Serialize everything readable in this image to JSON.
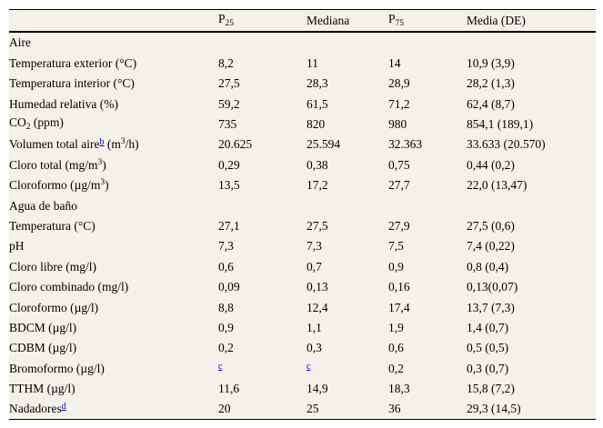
{
  "theme": {
    "table_background": "#f4f1e9",
    "page_background": "#ffffff",
    "text_color": "#000000",
    "rule_color": "#000000",
    "footnote_link_color": "#0000cc"
  },
  "table": {
    "header": {
      "columns": [
        {
          "id": "p25",
          "parts": [
            {
              "t": "P"
            },
            {
              "t": "25",
              "s": "sub"
            }
          ]
        },
        {
          "id": "mediana",
          "parts": [
            {
              "t": "Mediana"
            }
          ]
        },
        {
          "id": "p75",
          "parts": [
            {
              "t": "P"
            },
            {
              "t": "75",
              "s": "sub"
            }
          ]
        },
        {
          "id": "media-de",
          "parts": [
            {
              "t": "Media (DE)"
            }
          ]
        }
      ]
    },
    "rows": [
      {
        "type": "group",
        "label": [
          {
            "t": "Aire"
          }
        ]
      },
      {
        "type": "data",
        "label": [
          {
            "t": "Temperatura exterior (°C)"
          }
        ],
        "cells": [
          [
            {
              "t": "8,2"
            }
          ],
          [
            {
              "t": "11"
            }
          ],
          [
            {
              "t": "14"
            }
          ],
          [
            {
              "t": "10,9 (3,9)"
            }
          ]
        ]
      },
      {
        "type": "data",
        "label": [
          {
            "t": "Temperatura interior (°C)"
          }
        ],
        "cells": [
          [
            {
              "t": "27,5"
            }
          ],
          [
            {
              "t": "28,3"
            }
          ],
          [
            {
              "t": "28,9"
            }
          ],
          [
            {
              "t": "28,2 (1,3)"
            }
          ]
        ]
      },
      {
        "type": "data",
        "label": [
          {
            "t": "Humedad relativa (%)"
          }
        ],
        "cells": [
          [
            {
              "t": "59,2"
            }
          ],
          [
            {
              "t": "61,5"
            }
          ],
          [
            {
              "t": "71,2"
            }
          ],
          [
            {
              "t": "62,4 (8,7)"
            }
          ]
        ]
      },
      {
        "type": "data",
        "label": [
          {
            "t": "CO"
          },
          {
            "t": "2",
            "s": "sub"
          },
          {
            "t": " (ppm)"
          }
        ],
        "cells": [
          [
            {
              "t": "735"
            }
          ],
          [
            {
              "t": "820"
            }
          ],
          [
            {
              "t": "980"
            }
          ],
          [
            {
              "t": "854,1 (189,1)"
            }
          ]
        ]
      },
      {
        "type": "data",
        "label": [
          {
            "t": "Volumen total aire"
          },
          {
            "t": "b",
            "s": "footnote"
          },
          {
            "t": " (m"
          },
          {
            "t": "3",
            "s": "sup"
          },
          {
            "t": "/h)"
          }
        ],
        "cells": [
          [
            {
              "t": "20.625"
            }
          ],
          [
            {
              "t": "25.594"
            }
          ],
          [
            {
              "t": "32.363"
            }
          ],
          [
            {
              "t": "33.633 (20.570)"
            }
          ]
        ]
      },
      {
        "type": "data",
        "label": [
          {
            "t": "Cloro total (mg/m"
          },
          {
            "t": "3",
            "s": "sup"
          },
          {
            "t": ")"
          }
        ],
        "cells": [
          [
            {
              "t": "0,29"
            }
          ],
          [
            {
              "t": "0,38"
            }
          ],
          [
            {
              "t": "0,75"
            }
          ],
          [
            {
              "t": "0,44 (0,2)"
            }
          ]
        ]
      },
      {
        "type": "data",
        "label": [
          {
            "t": "Cloroformo (µg/m"
          },
          {
            "t": "3",
            "s": "sup"
          },
          {
            "t": ")"
          }
        ],
        "cells": [
          [
            {
              "t": "13,5"
            }
          ],
          [
            {
              "t": "17,2"
            }
          ],
          [
            {
              "t": "27,7"
            }
          ],
          [
            {
              "t": "22,0 (13,47)"
            }
          ]
        ]
      },
      {
        "type": "group",
        "label": [
          {
            "t": "Agua de baño"
          }
        ]
      },
      {
        "type": "data",
        "label": [
          {
            "t": "Temperatura (°C)"
          }
        ],
        "cells": [
          [
            {
              "t": "27,1"
            }
          ],
          [
            {
              "t": "27,5"
            }
          ],
          [
            {
              "t": "27,9"
            }
          ],
          [
            {
              "t": "27,5 (0,6)"
            }
          ]
        ]
      },
      {
        "type": "data",
        "label": [
          {
            "t": "pH"
          }
        ],
        "cells": [
          [
            {
              "t": "7,3"
            }
          ],
          [
            {
              "t": "7,3"
            }
          ],
          [
            {
              "t": "7,5"
            }
          ],
          [
            {
              "t": "7,4 (0,22)"
            }
          ]
        ]
      },
      {
        "type": "data",
        "label": [
          {
            "t": "Cloro libre (mg/l)"
          }
        ],
        "cells": [
          [
            {
              "t": "0,6"
            }
          ],
          [
            {
              "t": "0,7"
            }
          ],
          [
            {
              "t": "0,9"
            }
          ],
          [
            {
              "t": "0,8 (0,4)"
            }
          ]
        ]
      },
      {
        "type": "data",
        "label": [
          {
            "t": "Cloro combinado (mg/l)"
          }
        ],
        "cells": [
          [
            {
              "t": "0,09"
            }
          ],
          [
            {
              "t": "0,13"
            }
          ],
          [
            {
              "t": "0,16"
            }
          ],
          [
            {
              "t": "0,13(0,07)"
            }
          ]
        ]
      },
      {
        "type": "data",
        "label": [
          {
            "t": "Cloroformo (µg/l)"
          }
        ],
        "cells": [
          [
            {
              "t": "8,8"
            }
          ],
          [
            {
              "t": "12,4"
            }
          ],
          [
            {
              "t": "17,4"
            }
          ],
          [
            {
              "t": "13,7 (7,3)"
            }
          ]
        ]
      },
      {
        "type": "data",
        "label": [
          {
            "t": "BDCM (µg/l)"
          }
        ],
        "cells": [
          [
            {
              "t": "0,9"
            }
          ],
          [
            {
              "t": "1,1"
            }
          ],
          [
            {
              "t": "1,9"
            }
          ],
          [
            {
              "t": "1,4 (0,7)"
            }
          ]
        ]
      },
      {
        "type": "data",
        "label": [
          {
            "t": "CDBM (µg/l)"
          }
        ],
        "cells": [
          [
            {
              "t": "0,2"
            }
          ],
          [
            {
              "t": "0,3"
            }
          ],
          [
            {
              "t": "0,6"
            }
          ],
          [
            {
              "t": "0,5 (0,5)"
            }
          ]
        ]
      },
      {
        "type": "data",
        "label": [
          {
            "t": "Bromoformo (µg/l)"
          }
        ],
        "cells": [
          [
            {
              "t": "c",
              "s": "footnote"
            }
          ],
          [
            {
              "t": "c",
              "s": "footnote"
            }
          ],
          [
            {
              "t": "0,2"
            }
          ],
          [
            {
              "t": "0,3 (0,7)"
            }
          ]
        ]
      },
      {
        "type": "data",
        "label": [
          {
            "t": "TTHM (µg/l)"
          }
        ],
        "cells": [
          [
            {
              "t": "11,6"
            }
          ],
          [
            {
              "t": "14,9"
            }
          ],
          [
            {
              "t": "18,3"
            }
          ],
          [
            {
              "t": "15,8 (7,2)"
            }
          ]
        ]
      },
      {
        "type": "data",
        "label": [
          {
            "t": "Nadadores"
          },
          {
            "t": "d",
            "s": "footnote"
          }
        ],
        "cells": [
          [
            {
              "t": "20"
            }
          ],
          [
            {
              "t": "25"
            }
          ],
          [
            {
              "t": "36"
            }
          ],
          [
            {
              "t": "29,3 (14,5)"
            }
          ]
        ]
      }
    ]
  }
}
